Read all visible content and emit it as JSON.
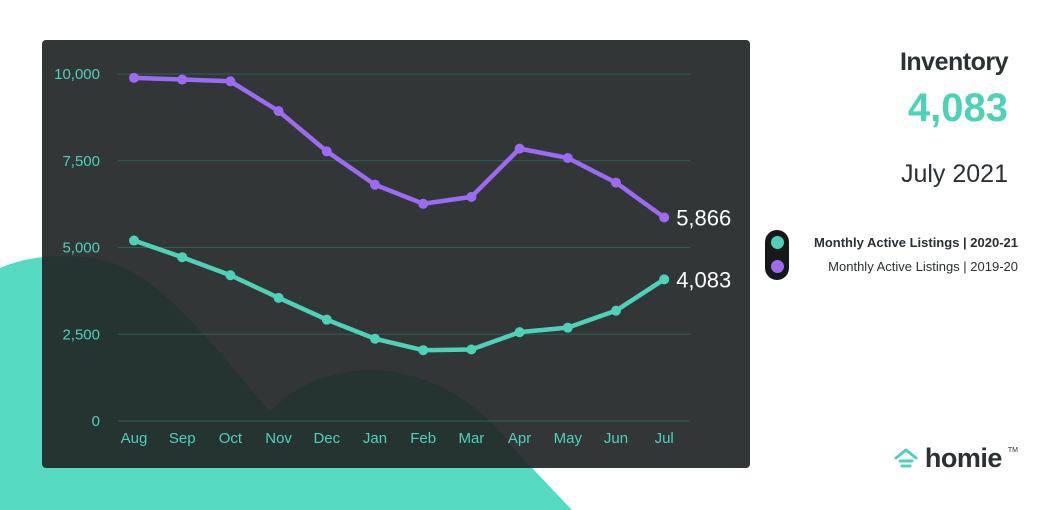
{
  "header": {
    "title": "Inventory",
    "value": "4,083",
    "period": "July 2021"
  },
  "legend": {
    "items": [
      {
        "label": "Monthly Active Listings |  2020-21",
        "color": "#4fd1b8"
      },
      {
        "label": "Monthly Active Listings |  2019-20",
        "color": "#9b6bf2"
      }
    ]
  },
  "brand": {
    "name": "homie",
    "tm": "TM",
    "icon": "home-icon"
  },
  "colors": {
    "accent": "#4fd1b8",
    "purple": "#9b6bf2",
    "panel": "#212525",
    "text": "#2b3033"
  },
  "chart_data": {
    "type": "line",
    "title": "",
    "xlabel": "",
    "ylabel": "",
    "categories": [
      "Aug",
      "Sep",
      "Oct",
      "Nov",
      "Dec",
      "Jan",
      "Feb",
      "Mar",
      "Apr",
      "May",
      "Jun",
      "Jul"
    ],
    "ylim": [
      0,
      10000
    ],
    "yticks": [
      0,
      2500,
      5000,
      7500,
      10000
    ],
    "ytick_labels": [
      "0",
      "2,500",
      "5,000",
      "7,500",
      "10,000"
    ],
    "grid": true,
    "series": [
      {
        "name": "Monthly Active Listings |  2020-21",
        "color": "#4fd1b8",
        "values": [
          5200,
          4720,
          4200,
          3550,
          2920,
          2370,
          2040,
          2060,
          2560,
          2690,
          3180,
          4083
        ],
        "end_label": "4,083"
      },
      {
        "name": "Monthly Active Listings |  2019-20",
        "color": "#9b6bf2",
        "values": [
          9890,
          9840,
          9790,
          8930,
          7770,
          6810,
          6260,
          6460,
          7850,
          7580,
          6870,
          5866
        ],
        "end_label": "5,866"
      }
    ]
  }
}
